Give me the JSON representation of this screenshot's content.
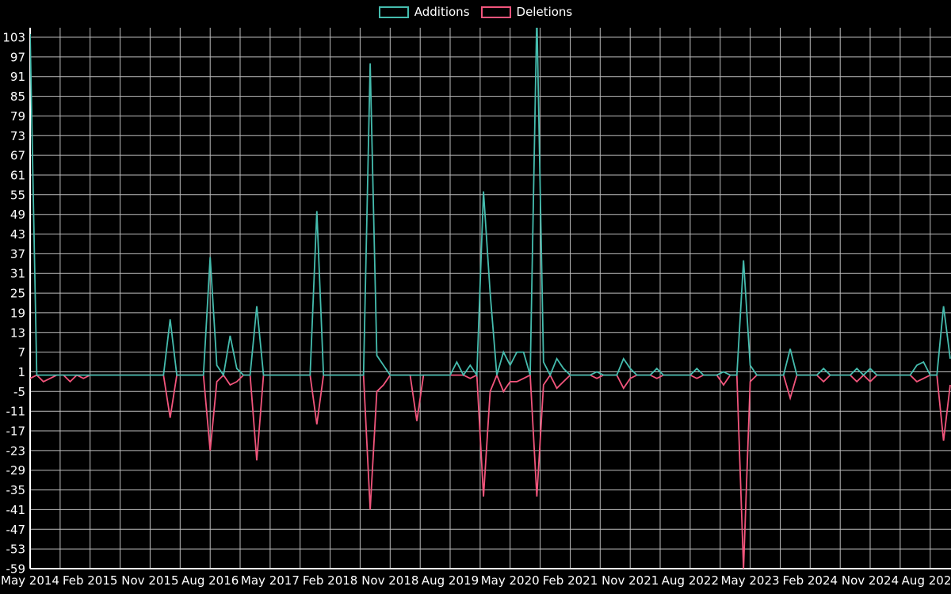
{
  "legend": {
    "position": "top-center",
    "items": [
      {
        "label": "Additions",
        "color": "#45bcae"
      },
      {
        "label": "Deletions",
        "color": "#f2557c"
      }
    ]
  },
  "chart_data": {
    "type": "line",
    "x_tick_labels": [
      "May 2014",
      "Feb 2015",
      "Nov 2015",
      "Aug 2016",
      "May 2017",
      "Feb 2018",
      "Nov 2018",
      "Aug 2019",
      "May 2020",
      "Feb 2021",
      "Nov 2021",
      "Aug 2022",
      "May 2023",
      "Feb 2024",
      "Nov 2024",
      "Aug 2025"
    ],
    "x_tick_month_indices": [
      0,
      9,
      18,
      27,
      36,
      45,
      54,
      63,
      72,
      81,
      90,
      99,
      108,
      117,
      126,
      135
    ],
    "x_grid_step_months": 4.5,
    "y_ticks": [
      103,
      97,
      91,
      85,
      79,
      73,
      67,
      61,
      55,
      49,
      43,
      37,
      31,
      25,
      19,
      13,
      7,
      1,
      -5,
      -11,
      -17,
      -23,
      -29,
      -35,
      -41,
      -47,
      -53,
      -59
    ],
    "ylim": [
      -59,
      103
    ],
    "x_range": [
      "May 2014",
      "Nov 2025"
    ],
    "grid": true,
    "legend_position": "top-center",
    "colors": {
      "background": "#000000",
      "grid": "#bdbdbd",
      "axis": "#ffffff",
      "text": "#ffffff"
    },
    "series": [
      {
        "name": "Additions",
        "color": "#45bcae",
        "values": [
          104,
          0,
          0,
          0,
          0,
          0,
          0,
          0,
          0,
          0,
          0,
          0,
          0,
          0,
          0,
          0,
          0,
          0,
          0,
          0,
          0,
          17,
          0,
          0,
          0,
          0,
          0,
          36,
          3,
          0,
          12,
          2,
          0,
          0,
          21,
          0,
          0,
          0,
          0,
          0,
          0,
          0,
          0,
          50,
          0,
          0,
          0,
          0,
          0,
          0,
          0,
          95,
          6,
          3,
          0,
          0,
          0,
          0,
          0,
          0,
          0,
          0,
          0,
          0,
          4,
          0,
          3,
          0,
          56,
          25,
          0,
          7,
          3,
          7,
          7,
          0,
          110,
          4,
          0,
          5,
          2,
          0,
          0,
          0,
          0,
          1,
          0,
          0,
          0,
          5,
          2,
          0,
          0,
          0,
          2,
          0,
          0,
          0,
          0,
          0,
          2,
          0,
          0,
          0,
          1,
          0,
          0,
          35,
          3,
          0,
          0,
          0,
          0,
          0,
          8,
          0,
          0,
          0,
          0,
          2,
          0,
          0,
          0,
          0,
          2,
          0,
          2,
          0,
          0,
          0,
          0,
          0,
          0,
          3,
          4,
          0,
          0,
          21,
          5
        ]
      },
      {
        "name": "Deletions",
        "color": "#f2557c",
        "values": [
          -1,
          0,
          -2,
          -1,
          0,
          0,
          -2,
          0,
          -1,
          0,
          0,
          0,
          0,
          0,
          0,
          0,
          0,
          0,
          0,
          0,
          0,
          -13,
          0,
          0,
          0,
          0,
          0,
          -23,
          -2,
          0,
          -3,
          -2,
          0,
          0,
          -26,
          0,
          0,
          0,
          0,
          0,
          0,
          0,
          0,
          -15,
          0,
          0,
          0,
          0,
          0,
          0,
          0,
          -41,
          -5,
          -3,
          0,
          0,
          0,
          0,
          -14,
          0,
          0,
          0,
          0,
          0,
          0,
          0,
          -1,
          0,
          -37,
          -5,
          0,
          -5,
          -2,
          -2,
          -1,
          0,
          -37,
          -3,
          0,
          -4,
          -2,
          0,
          0,
          0,
          0,
          -1,
          0,
          0,
          0,
          -4,
          -1,
          0,
          0,
          0,
          -1,
          0,
          0,
          0,
          0,
          0,
          -1,
          0,
          0,
          0,
          -3,
          0,
          0,
          -59,
          -2,
          0,
          0,
          0,
          0,
          0,
          -7,
          0,
          0,
          0,
          0,
          -2,
          0,
          0,
          0,
          0,
          -2,
          0,
          -2,
          0,
          0,
          0,
          0,
          0,
          0,
          -2,
          -1,
          0,
          0,
          -20,
          -3
        ]
      }
    ]
  }
}
